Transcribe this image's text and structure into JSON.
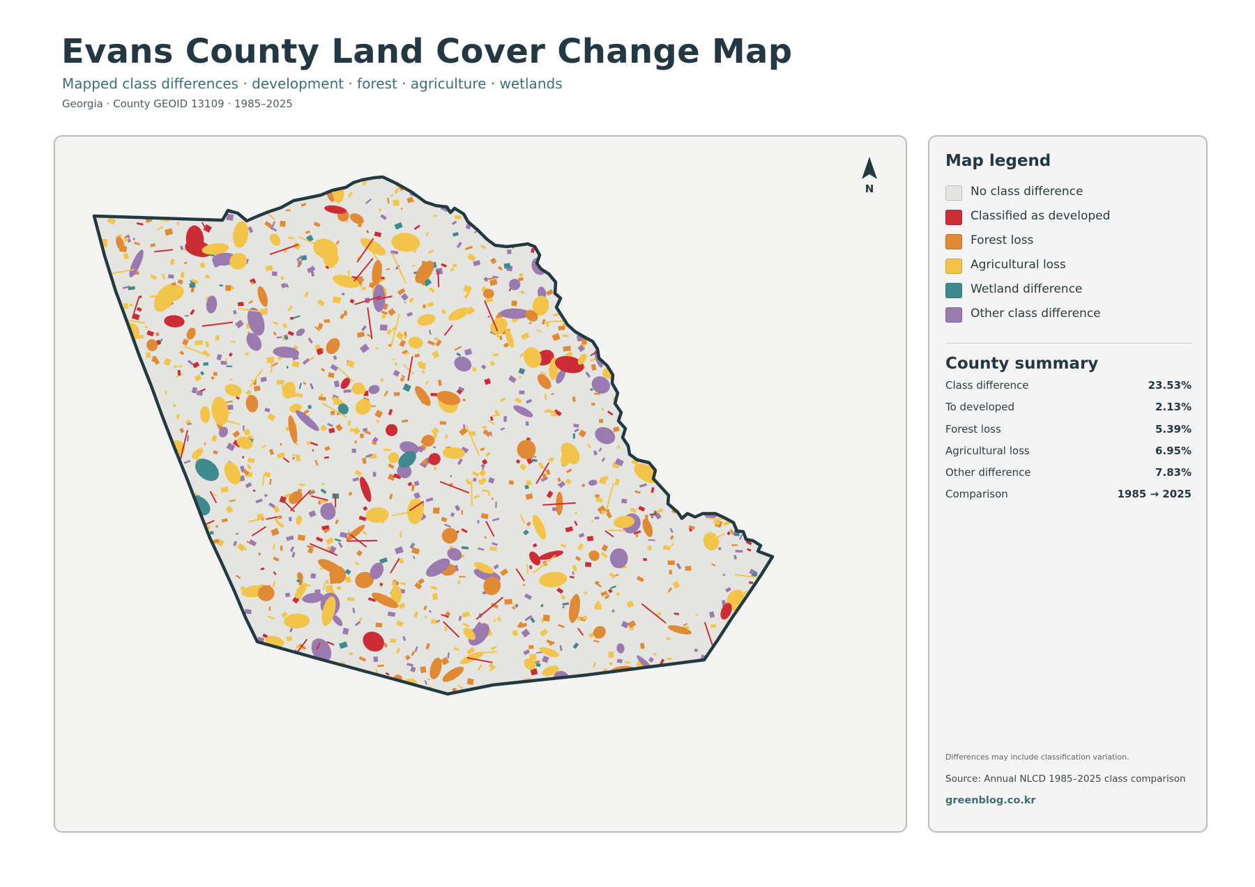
{
  "header": {
    "title": "Evans County Land Cover Change Map",
    "subtitle": "Mapped class differences · development · forest · agriculture · wetlands",
    "meta": "Georgia · County GEOID 13109 · 1985–2025"
  },
  "map": {
    "north_label": "N",
    "boundary_color": "#233940",
    "background_fill": "#e4e5e1"
  },
  "legend": {
    "title": "Map legend",
    "items": [
      {
        "label": "No class difference",
        "color": "#e4e5e1"
      },
      {
        "label": "Classified as developed",
        "color": "#cc2c36"
      },
      {
        "label": "Forest loss",
        "color": "#e08a36"
      },
      {
        "label": "Agricultural loss",
        "color": "#f2c54a"
      },
      {
        "label": "Wetland difference",
        "color": "#3e8a8f"
      },
      {
        "label": "Other class difference",
        "color": "#9a7aaf"
      }
    ]
  },
  "summary": {
    "title": "County summary",
    "rows": [
      {
        "label": "Class difference",
        "value": "23.53%"
      },
      {
        "label": "To developed",
        "value": "2.13%"
      },
      {
        "label": "Forest loss",
        "value": "5.39%"
      },
      {
        "label": "Agricultural loss",
        "value": "6.95%"
      },
      {
        "label": "Other difference",
        "value": "7.83%"
      },
      {
        "label": "Comparison",
        "value": "1985 → 2025"
      }
    ]
  },
  "footer": {
    "note": "Differences may include classification variation.",
    "source": "Source: Annual NLCD 1985–2025 class comparison",
    "site": "greenblog.co.kr"
  }
}
